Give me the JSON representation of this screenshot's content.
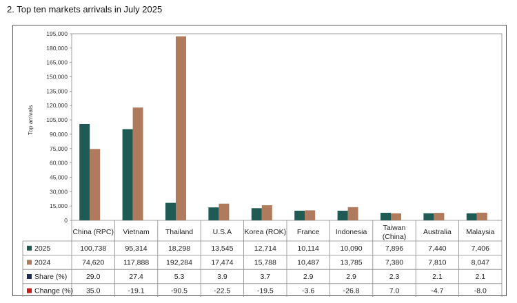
{
  "chart_data": {
    "type": "bar",
    "title": "2. Top ten markets arrivals in July  2025",
    "ylabel": "Top arrivals",
    "xlabel": "",
    "ylim": [
      0,
      195000
    ],
    "yticks": [
      "0",
      "15,000",
      "30,000",
      "45,000",
      "60,000",
      "75,000",
      "90,000",
      "105,000",
      "120,000",
      "135,000",
      "150,000",
      "165,000",
      "180,000",
      "195,000"
    ],
    "ytick_values": [
      0,
      15000,
      30000,
      45000,
      60000,
      75000,
      90000,
      105000,
      120000,
      135000,
      150000,
      165000,
      180000,
      195000
    ],
    "categories": [
      "China (RPC)",
      "Vietnam",
      "Thailand",
      "U.S.A",
      "Korea (ROK)",
      "France",
      "Indonesia",
      "Taiwan (China)",
      "Australia",
      "Malaysia"
    ],
    "series": [
      {
        "name": "2025",
        "color": "#1f5a55",
        "values": [
          100738,
          95314,
          18298,
          13545,
          12714,
          10114,
          10090,
          7896,
          7440,
          7406
        ],
        "labels": [
          "100,738",
          "95,314",
          "18,298",
          "13,545",
          "12,714",
          "10,114",
          "10,090",
          "7,896",
          "7,440",
          "7,406"
        ]
      },
      {
        "name": "2024",
        "color": "#b07a5c",
        "values": [
          74620,
          117888,
          192284,
          17474,
          15788,
          10487,
          13785,
          7380,
          7810,
          8047
        ],
        "labels": [
          "74,620",
          "117,888",
          "192,284",
          "17,474",
          "15,788",
          "10,487",
          "13,785",
          "7,380",
          "7,810",
          "8,047"
        ]
      }
    ],
    "table_rows": [
      {
        "name": "Share (%)",
        "color": "#1f2a55",
        "values": [
          "29.0",
          "27.4",
          "5.3",
          "3.9",
          "3.7",
          "2.9",
          "2.9",
          "2.3",
          "2.1",
          "2.1"
        ]
      },
      {
        "name": "Change (%)",
        "color": "#cc1a1a",
        "values": [
          "35.0",
          "-19.1",
          "-90.5",
          "-22.5",
          "-19.5",
          "-3.6",
          "-26.8",
          "7.0",
          "-4.7",
          "-8.0"
        ]
      }
    ]
  }
}
